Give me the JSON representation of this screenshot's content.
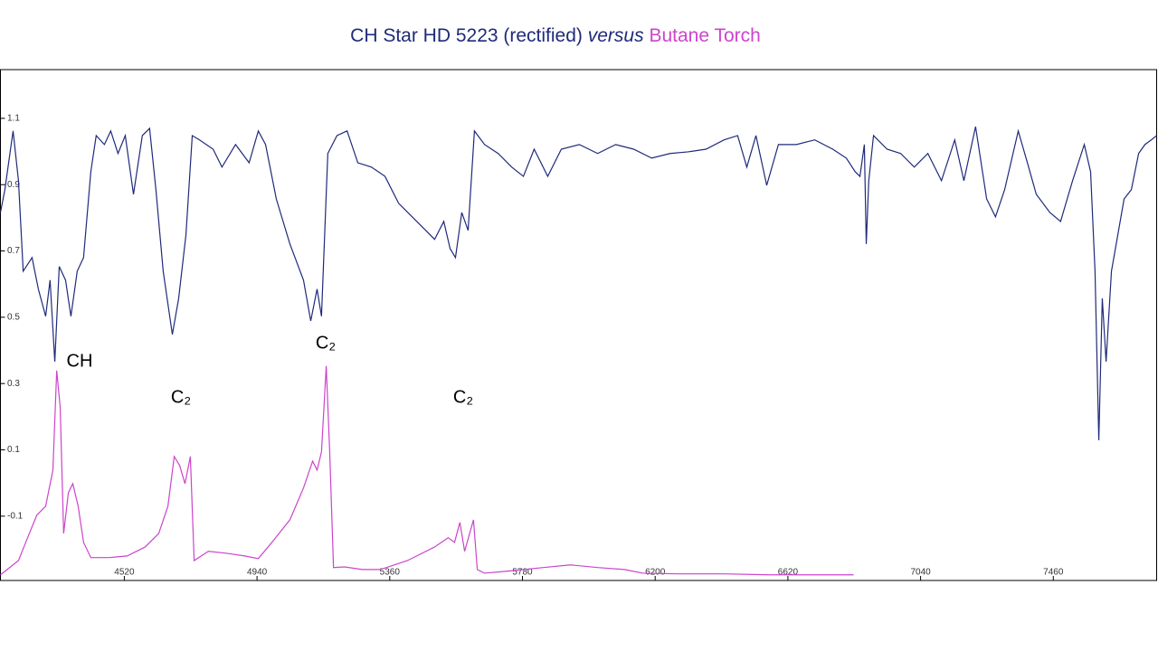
{
  "chart_data": {
    "type": "line",
    "title_connector": "versus",
    "xlim": [
      4128,
      7787
    ],
    "ylim": [
      -0.294,
      1.247
    ],
    "xticks": [
      4520,
      4940,
      5360,
      5780,
      6200,
      6620,
      7040,
      7460
    ],
    "yticks": [
      1.1,
      0.9,
      0.7,
      0.5,
      0.3,
      0.1,
      -0.1
    ],
    "annotations": [
      "CH",
      "C₂",
      "C₂",
      "C₂"
    ],
    "series": [
      {
        "name": "CH Star HD 5223 (rectified)",
        "color": "#1f2a7a",
        "x": [
          4128,
          4142,
          4168,
          4185,
          4200,
          4228,
          4248,
          4271,
          4285,
          4300,
          4314,
          4334,
          4351,
          4371,
          4391,
          4414,
          4431,
          4457,
          4477,
          4500,
          4523,
          4549,
          4577,
          4600,
          4620,
          4643,
          4672,
          4692,
          4715,
          4735,
          4758,
          4801,
          4829,
          4872,
          4915,
          4944,
          4967,
          5001,
          5044,
          5087,
          5110,
          5130,
          5144,
          5164,
          5193,
          5225,
          5259,
          5302,
          5345,
          5388,
          5431,
          5474,
          5502,
          5531,
          5551,
          5568,
          5588,
          5608,
          5628,
          5660,
          5703,
          5746,
          5783,
          5817,
          5860,
          5903,
          5960,
          6018,
          6075,
          6132,
          6189,
          6247,
          6304,
          6361,
          6418,
          6461,
          6490,
          6519,
          6553,
          6590,
          6647,
          6705,
          6762,
          6805,
          6833,
          6848,
          6862,
          6868,
          6876,
          6891,
          6934,
          6977,
          7020,
          7063,
          7106,
          7148,
          7177,
          7214,
          7249,
          7277,
          7306,
          7349,
          7378,
          7406,
          7449,
          7483,
          7521,
          7558,
          7578,
          7592,
          7604,
          7615,
          7627,
          7644,
          7664,
          7684,
          7707,
          7730,
          7750,
          7770,
          7787
        ],
        "values": [
          0.816,
          0.885,
          1.062,
          0.912,
          0.639,
          0.68,
          0.585,
          0.503,
          0.612,
          0.366,
          0.653,
          0.612,
          0.503,
          0.639,
          0.68,
          0.939,
          1.048,
          1.021,
          1.062,
          0.994,
          1.048,
          0.871,
          1.048,
          1.07,
          0.885,
          0.639,
          0.448,
          0.557,
          0.748,
          1.048,
          1.035,
          1.007,
          0.953,
          1.021,
          0.966,
          1.062,
          1.021,
          0.857,
          0.721,
          0.612,
          0.489,
          0.585,
          0.503,
          0.994,
          1.048,
          1.062,
          0.966,
          0.953,
          0.925,
          0.844,
          0.803,
          0.762,
          0.735,
          0.789,
          0.707,
          0.68,
          0.816,
          0.762,
          1.062,
          1.021,
          0.994,
          0.953,
          0.925,
          1.007,
          0.925,
          1.007,
          1.021,
          0.994,
          1.021,
          1.007,
          0.98,
          0.994,
          0.999,
          1.007,
          1.035,
          1.048,
          0.953,
          1.048,
          0.898,
          1.021,
          1.021,
          1.035,
          1.007,
          0.98,
          0.939,
          0.925,
          1.021,
          0.721,
          0.912,
          1.048,
          1.007,
          0.994,
          0.953,
          0.994,
          0.912,
          1.035,
          0.912,
          1.075,
          0.857,
          0.803,
          0.885,
          1.062,
          0.966,
          0.871,
          0.816,
          0.789,
          0.912,
          1.021,
          0.939,
          0.639,
          0.129,
          0.557,
          0.366,
          0.639,
          0.748,
          0.857,
          0.885,
          0.994,
          1.021,
          1.035,
          1.048
        ]
      },
      {
        "name": "Butane Torch",
        "color": "#cc44cc",
        "x": [
          4128,
          4185,
          4214,
          4243,
          4271,
          4294,
          4306,
          4317,
          4328,
          4343,
          4357,
          4374,
          4391,
          4414,
          4472,
          4529,
          4586,
          4629,
          4658,
          4678,
          4695,
          4712,
          4729,
          4741,
          4786,
          4844,
          4901,
          4944,
          4987,
          5044,
          5087,
          5116,
          5130,
          5144,
          5159,
          5170,
          5182,
          5216,
          5273,
          5330,
          5416,
          5502,
          5545,
          5565,
          5582,
          5597,
          5617,
          5625,
          5637,
          5660,
          5731,
          5846,
          5932,
          6018,
          6103,
          6161,
          6275,
          6418,
          6562,
          6828
        ],
        "values": [
          -0.277,
          -0.234,
          -0.165,
          -0.097,
          -0.07,
          0.039,
          0.339,
          0.23,
          -0.152,
          -0.029,
          -0.002,
          -0.07,
          -0.179,
          -0.225,
          -0.225,
          -0.22,
          -0.193,
          -0.152,
          -0.07,
          0.08,
          0.053,
          -0.002,
          0.08,
          -0.234,
          -0.206,
          -0.212,
          -0.22,
          -0.228,
          -0.179,
          -0.111,
          -0.015,
          0.066,
          0.039,
          0.094,
          0.353,
          0.094,
          -0.255,
          -0.253,
          -0.261,
          -0.261,
          -0.234,
          -0.193,
          -0.165,
          -0.179,
          -0.119,
          -0.206,
          -0.138,
          -0.111,
          -0.261,
          -0.272,
          -0.266,
          -0.255,
          -0.247,
          -0.255,
          -0.261,
          -0.272,
          -0.274,
          -0.274,
          -0.277,
          -0.277
        ]
      }
    ]
  }
}
